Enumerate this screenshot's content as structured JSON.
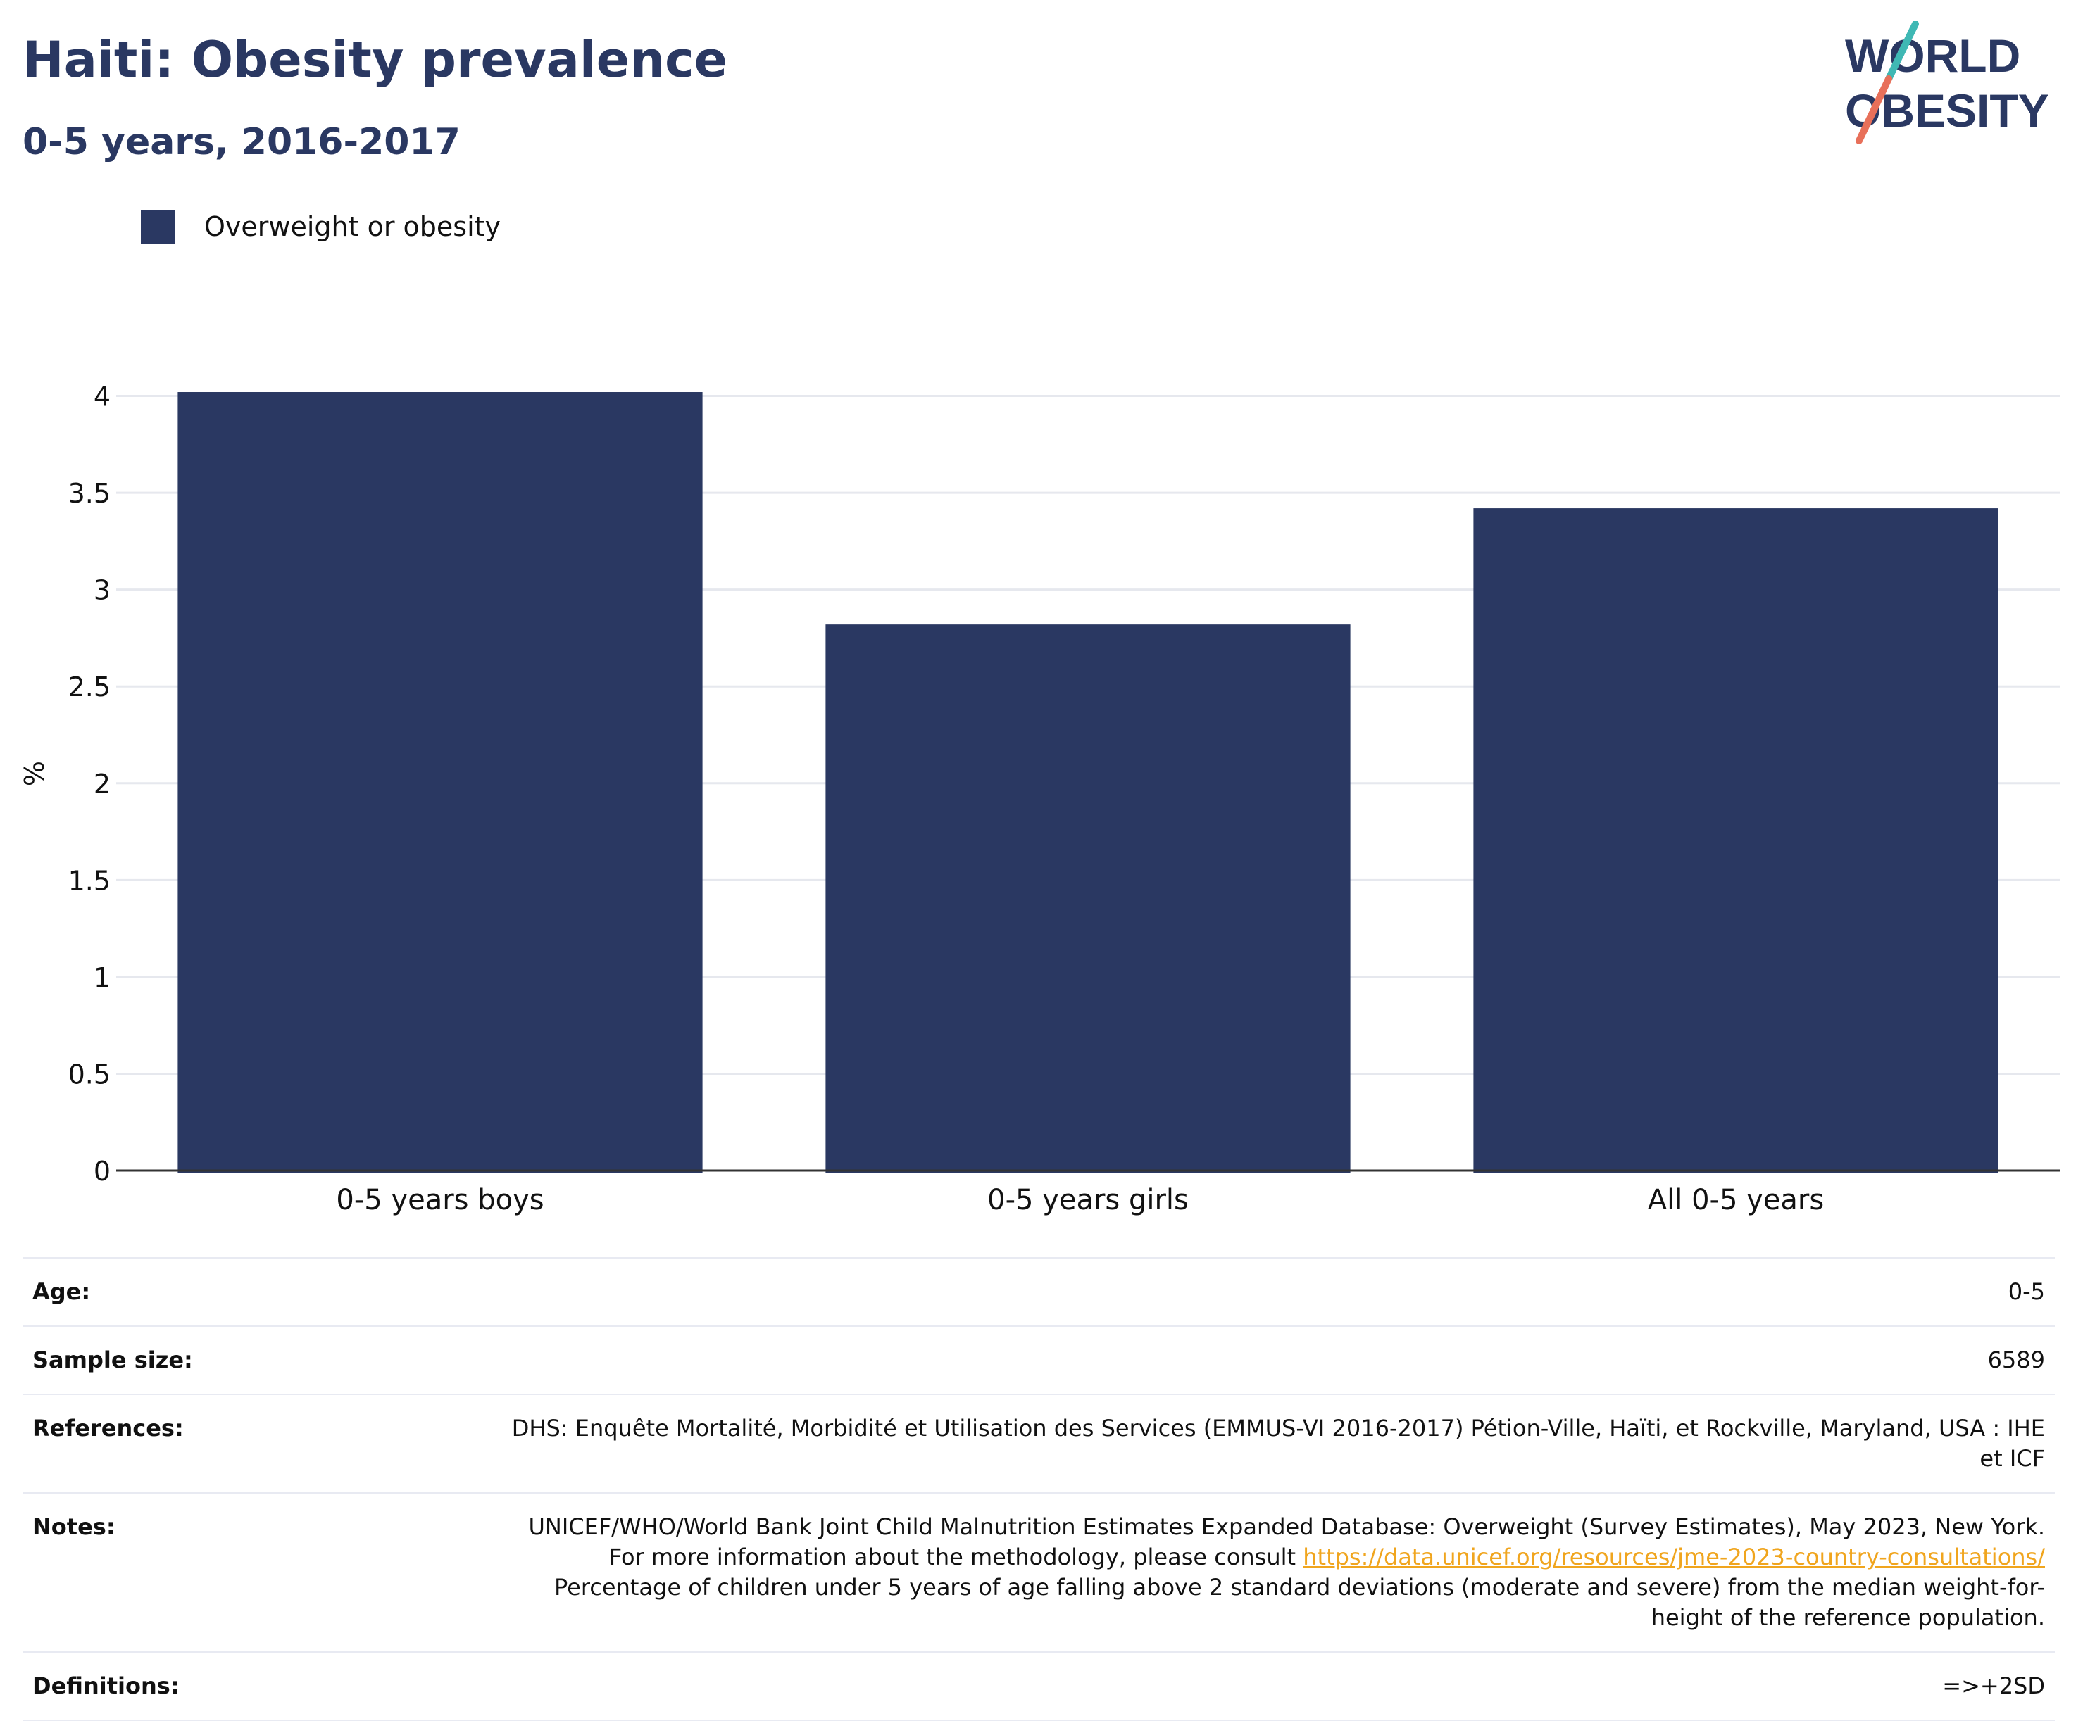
{
  "header": {
    "title": "Haiti: Obesity prevalence",
    "subtitle": "0-5 years, 2016-2017"
  },
  "logo": {
    "line1": "WORLD",
    "line2": "OBESITY",
    "slash_colors": [
      "#3fb8b4",
      "#e8705a"
    ]
  },
  "legend": {
    "label": "Overweight or obesity",
    "color": "#2a3862"
  },
  "chart_data": {
    "type": "bar",
    "categories": [
      "0-5 years boys",
      "0-5 years girls",
      "All 0-5 years"
    ],
    "series": [
      {
        "name": "Overweight or obesity",
        "values": [
          4.02,
          2.82,
          3.42
        ],
        "color": "#2a3862"
      }
    ],
    "ylabel": "%",
    "xlabel": "",
    "ylim": [
      0,
      4.1
    ],
    "yticks": [
      0,
      0.5,
      1,
      1.5,
      2,
      2.5,
      3,
      3.5,
      4
    ],
    "ytick_labels": [
      "0",
      "0.5",
      "1",
      "1.5",
      "2",
      "2.5",
      "3",
      "3.5",
      "4"
    ],
    "grid": true
  },
  "info": {
    "age_label": "Age:",
    "age_value": "0-5",
    "sample_label": "Sample size:",
    "sample_value": "6589",
    "references_label": "References:",
    "references_value": "DHS: Enquête Mortalité, Morbidité et Utilisation des Services (EMMUS-VI 2016-2017) Pétion-Ville, Haïti, et Rockville, Maryland, USA : IHE et ICF",
    "notes_label": "Notes:",
    "notes_text1": "UNICEF/WHO/World Bank Joint Child Malnutrition Estimates Expanded Database: Overweight (Survey Estimates), May 2023, New York. For more information about the methodology, please consult ",
    "notes_link": "https://data.unicef.org/resources/jme-2023-country-consultations/",
    "notes_text2": " Percentage of children under 5 years of age falling above 2 standard deviations (moderate and severe) from the median weight-for-height of the reference population.",
    "definitions_label": "Definitions:",
    "definitions_value": "=>+2SD"
  }
}
